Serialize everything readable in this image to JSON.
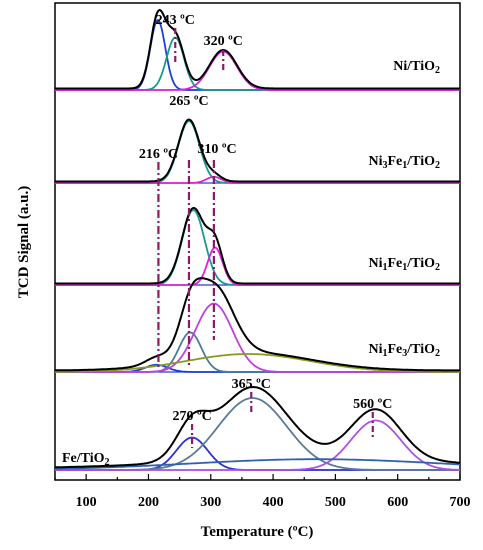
{
  "chart_data": {
    "type": "line",
    "xlabel": "Temperature (ºC)",
    "ylabel": "TCD Signal (a.u.)",
    "xlim": [
      50,
      700
    ],
    "x_ticks": [
      "100",
      "200",
      "300",
      "400",
      "500",
      "600",
      "700"
    ],
    "grid": false,
    "panels": [
      {
        "name": "Ni/TiO2",
        "label_main": "Ni/TiO",
        "label_sub": "2",
        "peak_labels": [
          {
            "text": "243 ºC",
            "x": 243
          },
          {
            "text": "320 ºC",
            "x": 320
          }
        ],
        "components": [
          {
            "center": 215,
            "amp": 1.0,
            "width": 12,
            "color": "#1f3fd6"
          },
          {
            "center": 243,
            "amp": 0.75,
            "width": 14,
            "color": "#1a9a8f"
          },
          {
            "center": 320,
            "amp": 0.55,
            "width": 22,
            "color": "#e020d8"
          }
        ],
        "envelope_color": "#000000"
      },
      {
        "name": "Ni3Fe1/TiO2",
        "label_parts": [
          "Ni",
          "3",
          "Fe",
          "1",
          "/TiO",
          "2"
        ],
        "peak_labels": [
          {
            "text": "265 ºC",
            "x": 265
          },
          {
            "text": "216 ºC",
            "x": 216
          },
          {
            "text": "310 ºC",
            "x": 310
          }
        ],
        "components": [
          {
            "center": 265,
            "amp": 1.0,
            "width": 17,
            "color": "#1a9a8f"
          },
          {
            "center": 305,
            "amp": 0.1,
            "width": 12,
            "color": "#e020d8"
          }
        ],
        "envelope_color": "#000000"
      },
      {
        "name": "Ni1Fe1/TiO2",
        "label_parts": [
          "Ni",
          "1",
          "Fe",
          "1",
          "/TiO",
          "2"
        ],
        "peak_labels": [],
        "components": [
          {
            "center": 272,
            "amp": 1.0,
            "width": 18,
            "color": "#1a9a8f"
          },
          {
            "center": 307,
            "amp": 0.5,
            "width": 12,
            "color": "#e020d8"
          }
        ],
        "envelope_color": "#000000"
      },
      {
        "name": "Ni1Fe3/TiO2",
        "label_parts": [
          "Ni",
          "1",
          "Fe",
          "3",
          "/TiO",
          "2"
        ],
        "peak_labels": [],
        "components": [
          {
            "center": 213,
            "amp": 0.1,
            "width": 18,
            "color": "#1f3fd6"
          },
          {
            "center": 267,
            "amp": 0.55,
            "width": 18,
            "color": "#4a7a9a"
          },
          {
            "center": 305,
            "amp": 0.95,
            "width": 30,
            "color": "#c040e0"
          },
          {
            "center": 360,
            "amp": 0.25,
            "width": 100,
            "color": "#8a9a20"
          }
        ],
        "envelope_color": "#000000"
      },
      {
        "name": "Fe/TiO2",
        "label_main": "Fe/TiO",
        "label_sub": "2",
        "peak_labels": [
          {
            "text": "365 ºC",
            "x": 365
          },
          {
            "text": "270 ºC",
            "x": 270
          },
          {
            "text": "560 ºC",
            "x": 560
          }
        ],
        "components": [
          {
            "center": 270,
            "amp": 0.36,
            "width": 25,
            "color": "#3030d0"
          },
          {
            "center": 367,
            "amp": 0.8,
            "width": 55,
            "color": "#5a7a9a"
          },
          {
            "center": 565,
            "amp": 0.55,
            "width": 40,
            "color": "#b050e0"
          },
          {
            "center": 470,
            "amp": 0.12,
            "width": 200,
            "color": "#3060b0"
          }
        ],
        "envelope_color": "#000000"
      }
    ],
    "guide_lines": [
      {
        "x": 216,
        "color": "#8b1a6b"
      },
      {
        "x": 265,
        "color": "#8b1a6b"
      },
      {
        "x": 305,
        "color": "#8b1a6b"
      }
    ]
  }
}
